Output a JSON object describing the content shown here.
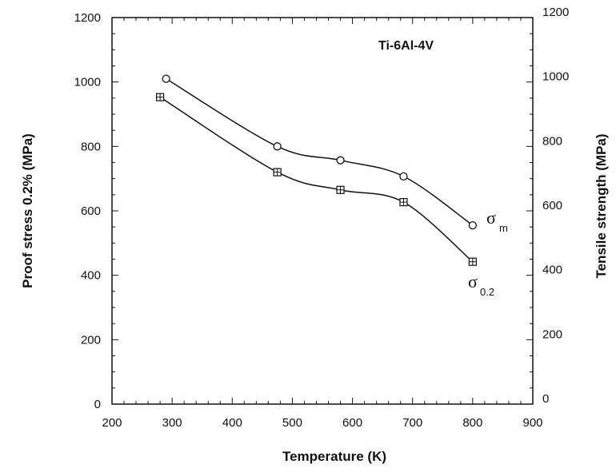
{
  "chart_data": {
    "type": "line",
    "title": "",
    "annotation": "Ti-6Al-4V",
    "xlabel": "Temperature (K)",
    "ylabel_left": "Proof stress 0.2% (MPa)",
    "ylabel_right": "Tensile strength (MPa)",
    "xlim": [
      200,
      900
    ],
    "ylim": [
      0,
      1200
    ],
    "x_ticks": [
      "200",
      "300",
      "400",
      "500",
      "600",
      "700",
      "800",
      "900"
    ],
    "y_ticks_left": [
      "0",
      "200",
      "400",
      "600",
      "800",
      "1000",
      "1200"
    ],
    "y_ticks_right": [
      "0",
      "200",
      "400",
      "600",
      "800",
      "1000",
      "1200"
    ],
    "grid": false,
    "series": [
      {
        "name": "σm",
        "label_main": "σ",
        "label_sub": "m",
        "marker": "circle",
        "axis": "right",
        "x": [
          290,
          475,
          580,
          685,
          800
        ],
        "y": [
          1010,
          800,
          757,
          707,
          555
        ]
      },
      {
        "name": "σ0.2",
        "label_main": "σ",
        "label_sub": "0.2",
        "marker": "square-plus",
        "axis": "left",
        "x": [
          280,
          475,
          580,
          685,
          800
        ],
        "y": [
          953,
          720,
          665,
          627,
          442
        ]
      }
    ]
  }
}
